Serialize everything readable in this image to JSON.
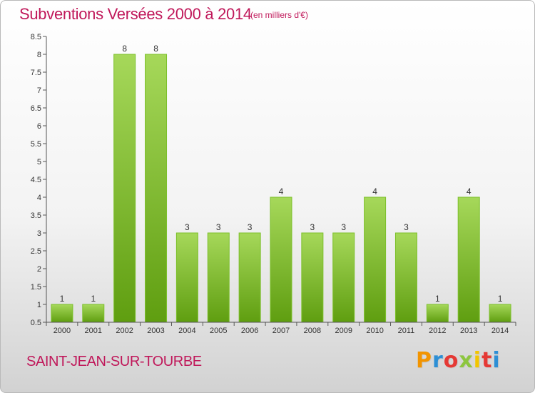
{
  "title": "Subventions Versées 2000 à 2014",
  "subtitle": "(en milliers d'€)",
  "commune": "SAINT-JEAN-SUR-TOURBE",
  "logo": {
    "letters": [
      "P",
      "r",
      "o",
      "x",
      "i",
      "t",
      "i"
    ],
    "colors": [
      "#f29400",
      "#2d8fd5",
      "#e53935",
      "#8dc63f",
      "#f2c500",
      "#e53935",
      "#2d8fd5"
    ]
  },
  "colors": {
    "title": "#c0185a",
    "bar_light": "#a6d85a",
    "bar_dark": "#5f9e10",
    "bar_edge": "#7cc02a"
  },
  "chart_data": {
    "type": "bar",
    "title": "Subventions Versées 2000 à 2014",
    "subtitle": "(en milliers d'€)",
    "categories": [
      "2000",
      "2001",
      "2002",
      "2003",
      "2004",
      "2005",
      "2006",
      "2007",
      "2008",
      "2009",
      "2010",
      "2011",
      "2012",
      "2013",
      "2014"
    ],
    "values": [
      1,
      1,
      8,
      8,
      3,
      3,
      3,
      4,
      3,
      3,
      4,
      3,
      1,
      4,
      1
    ],
    "data_labels": [
      "1",
      "1",
      "8",
      "8",
      "3",
      "3",
      "3",
      "4",
      "3",
      "3",
      "4",
      "3",
      "1",
      "4",
      "1"
    ],
    "ylim": [
      0.5,
      8.5
    ],
    "yticks": [
      0.5,
      1,
      1.5,
      2,
      2.5,
      3,
      3.5,
      4,
      4.5,
      5,
      5.5,
      6,
      6.5,
      7,
      7.5,
      8,
      8.5
    ],
    "ytick_labels": [
      "0.5",
      "1",
      "1.5",
      "2",
      "2.5",
      "3",
      "3.5",
      "4",
      "4.5",
      "5",
      "5.5",
      "6",
      "6.5",
      "7",
      "7.5",
      "8",
      "8.5"
    ],
    "grid": false,
    "xlabel": "",
    "ylabel": ""
  }
}
